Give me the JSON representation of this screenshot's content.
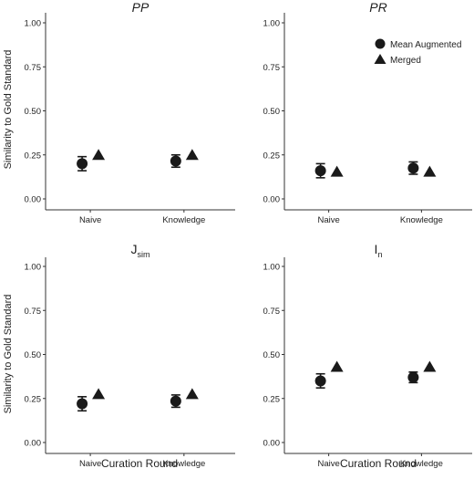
{
  "figure": {
    "y_axis_label": "Similarity to Gold Standard",
    "x_axis_label": "Curation Round",
    "legend": [
      {
        "label": "Mean Augmented",
        "marker": "circle"
      },
      {
        "label": "Merged",
        "marker": "triangle"
      }
    ],
    "legend_placement": "top-right of PR panel"
  },
  "colors": {
    "marker": "#1a1a1a",
    "axis": "#333333",
    "text": "#222222"
  },
  "chart_data": [
    {
      "type": "scatter",
      "title": "PP",
      "title_style": "italic",
      "categories": [
        "Naive",
        "Knowledge"
      ],
      "ylim": [
        0,
        1
      ],
      "yticks": [
        "0.00",
        "0.25",
        "0.50",
        "0.75",
        "1.00"
      ],
      "series": [
        {
          "name": "Mean Augmented",
          "values": [
            0.2,
            0.215
          ],
          "error_low": [
            0.16,
            0.18
          ],
          "error_high": [
            0.24,
            0.25
          ]
        },
        {
          "name": "Merged",
          "values": [
            0.25,
            0.25
          ]
        }
      ]
    },
    {
      "type": "scatter",
      "title": "PR",
      "title_style": "italic",
      "categories": [
        "Naive",
        "Knowledge"
      ],
      "ylim": [
        0,
        1
      ],
      "yticks": [
        "0.00",
        "0.25",
        "0.50",
        "0.75",
        "1.00"
      ],
      "series": [
        {
          "name": "Mean Augmented",
          "values": [
            0.16,
            0.175
          ],
          "error_low": [
            0.12,
            0.14
          ],
          "error_high": [
            0.2,
            0.21
          ]
        },
        {
          "name": "Merged",
          "values": [
            0.155,
            0.155
          ]
        }
      ]
    },
    {
      "type": "scatter",
      "title": "J",
      "title_sub": "sim",
      "categories": [
        "Naive",
        "Knowledge"
      ],
      "ylim": [
        0,
        1
      ],
      "yticks": [
        "0.00",
        "0.25",
        "0.50",
        "0.75",
        "1.00"
      ],
      "series": [
        {
          "name": "Mean Augmented",
          "values": [
            0.22,
            0.235
          ],
          "error_low": [
            0.18,
            0.2
          ],
          "error_high": [
            0.26,
            0.27
          ]
        },
        {
          "name": "Merged",
          "values": [
            0.275,
            0.275
          ]
        }
      ]
    },
    {
      "type": "scatter",
      "title": "I",
      "title_sub": "n",
      "categories": [
        "Naive",
        "Knowledge"
      ],
      "ylim": [
        0,
        1
      ],
      "yticks": [
        "0.00",
        "0.25",
        "0.50",
        "0.75",
        "1.00"
      ],
      "series": [
        {
          "name": "Mean Augmented",
          "values": [
            0.35,
            0.37
          ],
          "error_low": [
            0.31,
            0.34
          ],
          "error_high": [
            0.39,
            0.4
          ]
        },
        {
          "name": "Merged",
          "values": [
            0.43,
            0.43
          ]
        }
      ]
    }
  ]
}
